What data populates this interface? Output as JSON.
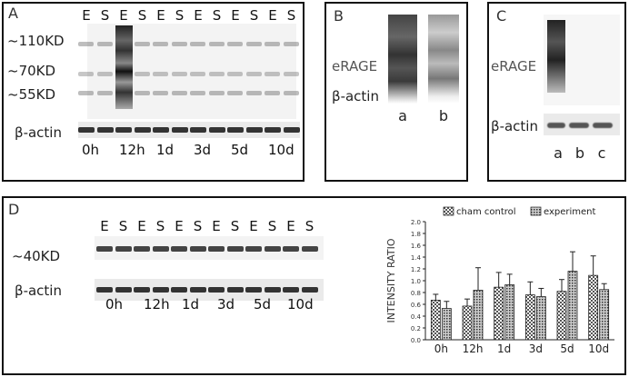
{
  "panelA": {
    "label": "A",
    "lanes": [
      "E",
      "S",
      "E",
      "S",
      "E",
      "S",
      "E",
      "S",
      "E",
      "S",
      "E",
      "S"
    ],
    "markers": [
      "~110KD",
      "~70KD",
      "~55KD"
    ],
    "actin_label": "β-actin",
    "timepoints": [
      "0h",
      "12h",
      "1d",
      "3d",
      "5d",
      "10d"
    ]
  },
  "panelB": {
    "label": "B",
    "rage_label": "eRAGE",
    "actin_label": "β-actin",
    "lanes": [
      "a",
      "b"
    ]
  },
  "panelC": {
    "label": "C",
    "rage_label": "eRAGE",
    "actin_label": "β-actin",
    "lanes": [
      "a",
      "b",
      "c"
    ]
  },
  "panelD": {
    "label": "D",
    "lanes": [
      "E",
      "S",
      "E",
      "S",
      "E",
      "S",
      "E",
      "S",
      "E",
      "S",
      "E",
      "S"
    ],
    "marker": "~40KD",
    "actin_label": "β-actin",
    "timepoints": [
      "0h",
      "12h",
      "1d",
      "3d",
      "5d",
      "10d"
    ]
  },
  "chart_data": {
    "type": "bar",
    "categories": [
      "0h",
      "12h",
      "1d",
      "3d",
      "5d",
      "10d"
    ],
    "series": [
      {
        "name": "cham control",
        "values": [
          0.67,
          0.57,
          0.89,
          0.76,
          0.82,
          1.09
        ],
        "errors": [
          0.1,
          0.12,
          0.25,
          0.22,
          0.2,
          0.33
        ]
      },
      {
        "name": "experiment",
        "values": [
          0.53,
          0.84,
          0.93,
          0.73,
          1.16,
          0.85
        ],
        "errors": [
          0.12,
          0.38,
          0.18,
          0.14,
          0.33,
          0.1
        ]
      }
    ],
    "ylabel": "INTENSITY RATIO",
    "ylim": [
      0,
      2.0
    ],
    "yticks": [
      "0.0",
      "0.2",
      "0.4",
      "0.6",
      "0.8",
      "1.0",
      "1.2",
      "1.4",
      "1.6",
      "1.8",
      "2.0"
    ],
    "legend": "top",
    "grid": false
  }
}
